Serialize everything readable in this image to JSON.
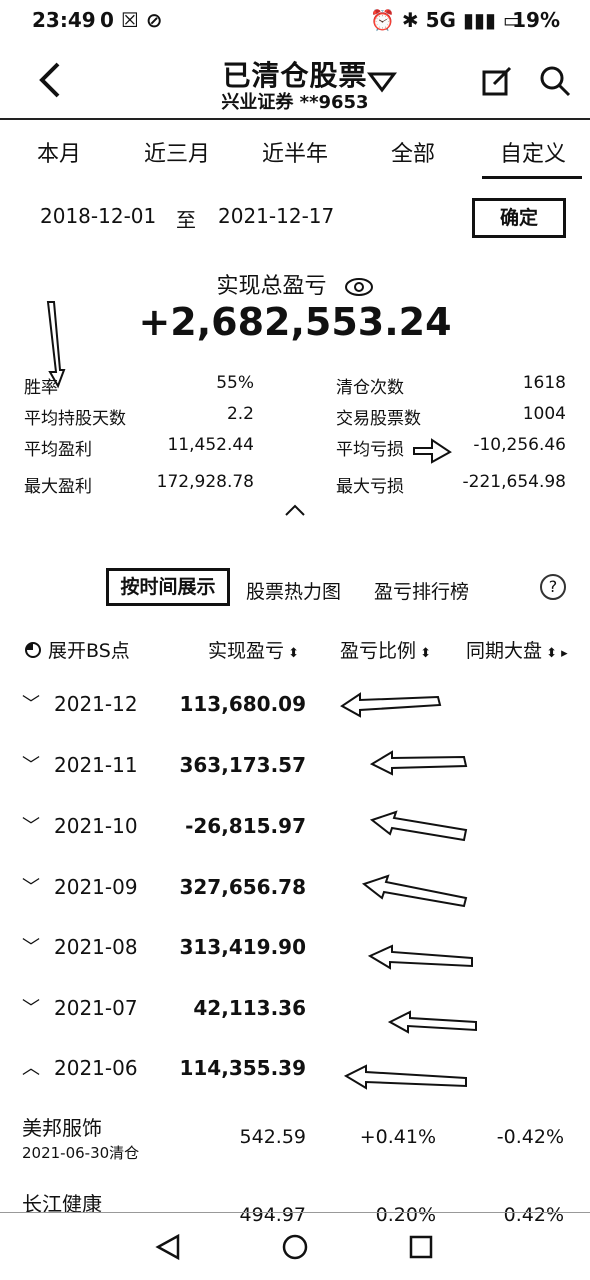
{
  "status": {
    "time": "23:49",
    "battery": "19%",
    "icons_left": "0 ☒ ⊘",
    "icons_right": "⏰ ✱ 5G ▮▮▮ ▭"
  },
  "header": {
    "title": "已清仓股票",
    "account": "兴业证券 **9653"
  },
  "tabs": [
    {
      "label": "本月"
    },
    {
      "label": "近三月"
    },
    {
      "label": "近半年"
    },
    {
      "label": "全部"
    },
    {
      "label": "自定义"
    }
  ],
  "date_range": {
    "start": "2018-12-01",
    "to": "至",
    "end": "2021-12-17",
    "confirm": "确定"
  },
  "summary": {
    "label": "实现总盈亏",
    "value": "+2,682,553.24"
  },
  "stats": [
    {
      "label": "胜率",
      "value": "55%",
      "label2": "清仓次数",
      "value2": "1618"
    },
    {
      "label": "平均持股天数",
      "value": "2.2",
      "label2": "交易股票数",
      "value2": "1004"
    },
    {
      "label": "平均盈利",
      "value": "11,452.44",
      "label2": "平均亏损",
      "value2": "-10,256.46"
    },
    {
      "label": "最大盈利",
      "value": "172,928.78",
      "label2": "最大亏损",
      "value2": "-221,654.98"
    }
  ],
  "views": {
    "time": "按时间展示",
    "heatmap": "股票热力图",
    "ranking": "盈亏排行榜",
    "help": "?"
  },
  "columns": {
    "c1": "展开BS点",
    "c2": "实现盈亏",
    "c3": "盈亏比例",
    "c4": "同期大盘"
  },
  "months": [
    {
      "date": "2021-12",
      "value": "113,680.09"
    },
    {
      "date": "2021-11",
      "value": "363,173.57"
    },
    {
      "date": "2021-10",
      "value": "-26,815.97"
    },
    {
      "date": "2021-09",
      "value": "327,656.78"
    },
    {
      "date": "2021-08",
      "value": "313,419.90"
    },
    {
      "date": "2021-07",
      "value": "42,113.36"
    },
    {
      "date": "2021-06",
      "value": "114,355.39"
    }
  ],
  "stocks": [
    {
      "name": "美邦服饰",
      "sub": "2021-06-30清仓",
      "pnl": "542.59",
      "ratio": "+0.41%",
      "market": "-0.42%"
    },
    {
      "name": "长江健康",
      "sub": "",
      "pnl": "494.97",
      "ratio": "0.20%",
      "market": "0.42%"
    }
  ]
}
